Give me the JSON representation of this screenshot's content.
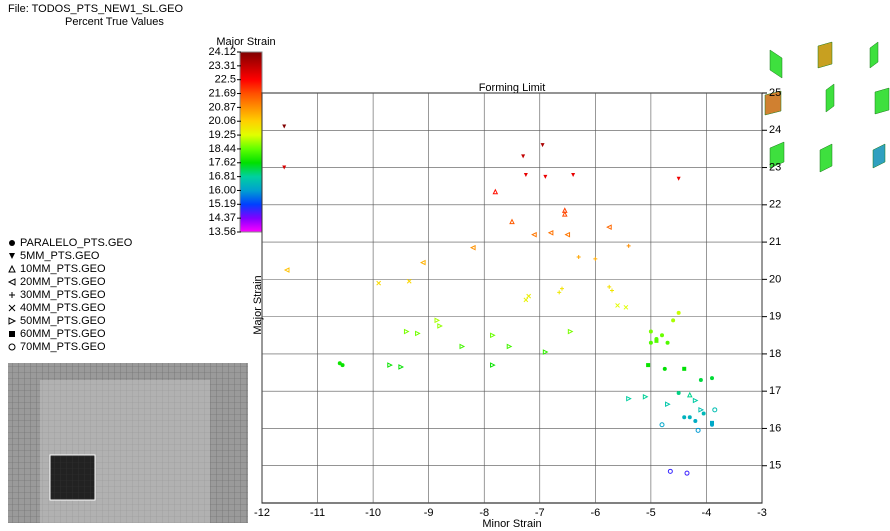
{
  "file_label": "File: TODOS_PTS_NEW1_SL.GEO",
  "subtitle": "Percent True Values",
  "colorbar": {
    "title": "Major Strain",
    "ticks": [
      24.12,
      23.31,
      22.5,
      21.69,
      20.87,
      20.06,
      19.25,
      18.44,
      17.62,
      16.81,
      {
        "value": 16,
        "label": "16.00"
      },
      15.19,
      14.37,
      13.56
    ],
    "colors": [
      "#800000",
      "#c00000",
      "#ff0000",
      "#ff5000",
      "#ff9000",
      "#ffd000",
      "#e0ff00",
      "#60ff00",
      "#00e000",
      "#00d0a0",
      "#00a0d0",
      "#0040ff",
      "#8000ff",
      "#ff00ff"
    ]
  },
  "chart_data": {
    "type": "scatter",
    "title": "Forming Limit",
    "x_label": "Minor Strain",
    "y_label": "Major Strain",
    "xlim": [
      -12,
      -3
    ],
    "ylim": [
      14,
      25
    ],
    "xticks": [
      -12,
      -11,
      -10,
      -9,
      -8,
      -7,
      -6,
      -5,
      -4,
      -3
    ],
    "yticks": [
      15,
      16,
      17,
      18,
      19,
      20,
      21,
      22,
      23,
      24,
      25
    ],
    "grid": true,
    "series": [
      {
        "name": "PARALELO_PTS.GEO",
        "marker": "filled-circle",
        "x": [
          -5,
          -4.9,
          -4.8,
          -4.7,
          -5,
          -4.6,
          -4.5,
          -4.1,
          -3.9,
          -4.3,
          -4.2,
          -3.9,
          -4.05,
          -4.4,
          -4.5,
          -4.75,
          -10.6,
          -10.55
        ],
        "y": [
          18.6,
          18.4,
          18.5,
          18.3,
          18.3,
          18.9,
          19.1,
          17.3,
          17.35,
          16.3,
          16.2,
          16.1,
          16.4,
          16.3,
          16.95,
          17.6,
          17.75,
          17.7
        ]
      },
      {
        "name": "5MM_PTS.GEO",
        "marker": "triangle-down",
        "x": [
          -11.6,
          -11.6,
          -7.3,
          -6.95,
          -7.25,
          -6.9,
          -6.4,
          -4.5
        ],
        "y": [
          24.1,
          23,
          23.3,
          23.6,
          22.8,
          22.75,
          22.8,
          22.7
        ]
      },
      {
        "name": "10MM_PTS.GEO",
        "marker": "triangle-up",
        "x": [
          -7.8,
          -6.55,
          -6.55,
          -7.5,
          -4.3
        ],
        "y": [
          22.35,
          21.85,
          21.75,
          21.55,
          16.9
        ]
      },
      {
        "name": "20MM_PTS.GEO",
        "marker": "triangle-left",
        "x": [
          -7.1,
          -6.8,
          -6.5,
          -5.75,
          -8.2,
          -11.55,
          -9.1
        ],
        "y": [
          21.2,
          21.25,
          21.2,
          21.4,
          20.85,
          20.25,
          20.45
        ]
      },
      {
        "name": "30MM_PTS.GEO",
        "marker": "plus",
        "x": [
          -6.3,
          -6,
          -5.4,
          -6.6,
          -6.65,
          -5.75,
          -5.7
        ],
        "y": [
          20.6,
          20.55,
          20.9,
          19.75,
          19.65,
          19.8,
          19.7
        ]
      },
      {
        "name": "40MM_PTS.GEO",
        "marker": "cross",
        "x": [
          -9.9,
          -9.35,
          -7.2,
          -7.25,
          -5.6,
          -5.45
        ],
        "y": [
          19.9,
          19.95,
          19.55,
          19.45,
          19.3,
          19.25
        ]
      },
      {
        "name": "50MM_PTS.GEO",
        "marker": "triangle-right",
        "x": [
          -8.85,
          -8.8,
          -9.4,
          -9.2,
          -7.85,
          -8.4,
          -7.55,
          -6.45,
          -6.9,
          -9.7,
          -9.5,
          -7.85,
          -5.4,
          -5.1,
          -4.7,
          -4.2,
          -4.1
        ],
        "y": [
          18.9,
          18.75,
          18.6,
          18.55,
          18.5,
          18.2,
          18.2,
          18.6,
          18.05,
          17.7,
          17.65,
          17.7,
          16.8,
          16.85,
          16.65,
          16.75,
          16.5
        ]
      },
      {
        "name": "60MM_PTS.GEO",
        "marker": "filled-square",
        "x": [
          -5.05,
          -4.9,
          -4.4,
          -3.9
        ],
        "y": [
          17.7,
          18.35,
          17.6,
          16.15
        ]
      },
      {
        "name": "70MM_PTS.GEO",
        "marker": "open-circle",
        "x": [
          -4.65,
          -4.35,
          -4.8,
          -4.15,
          -3.85
        ],
        "y": [
          14.85,
          14.8,
          16.1,
          15.95,
          16.5
        ]
      }
    ]
  }
}
